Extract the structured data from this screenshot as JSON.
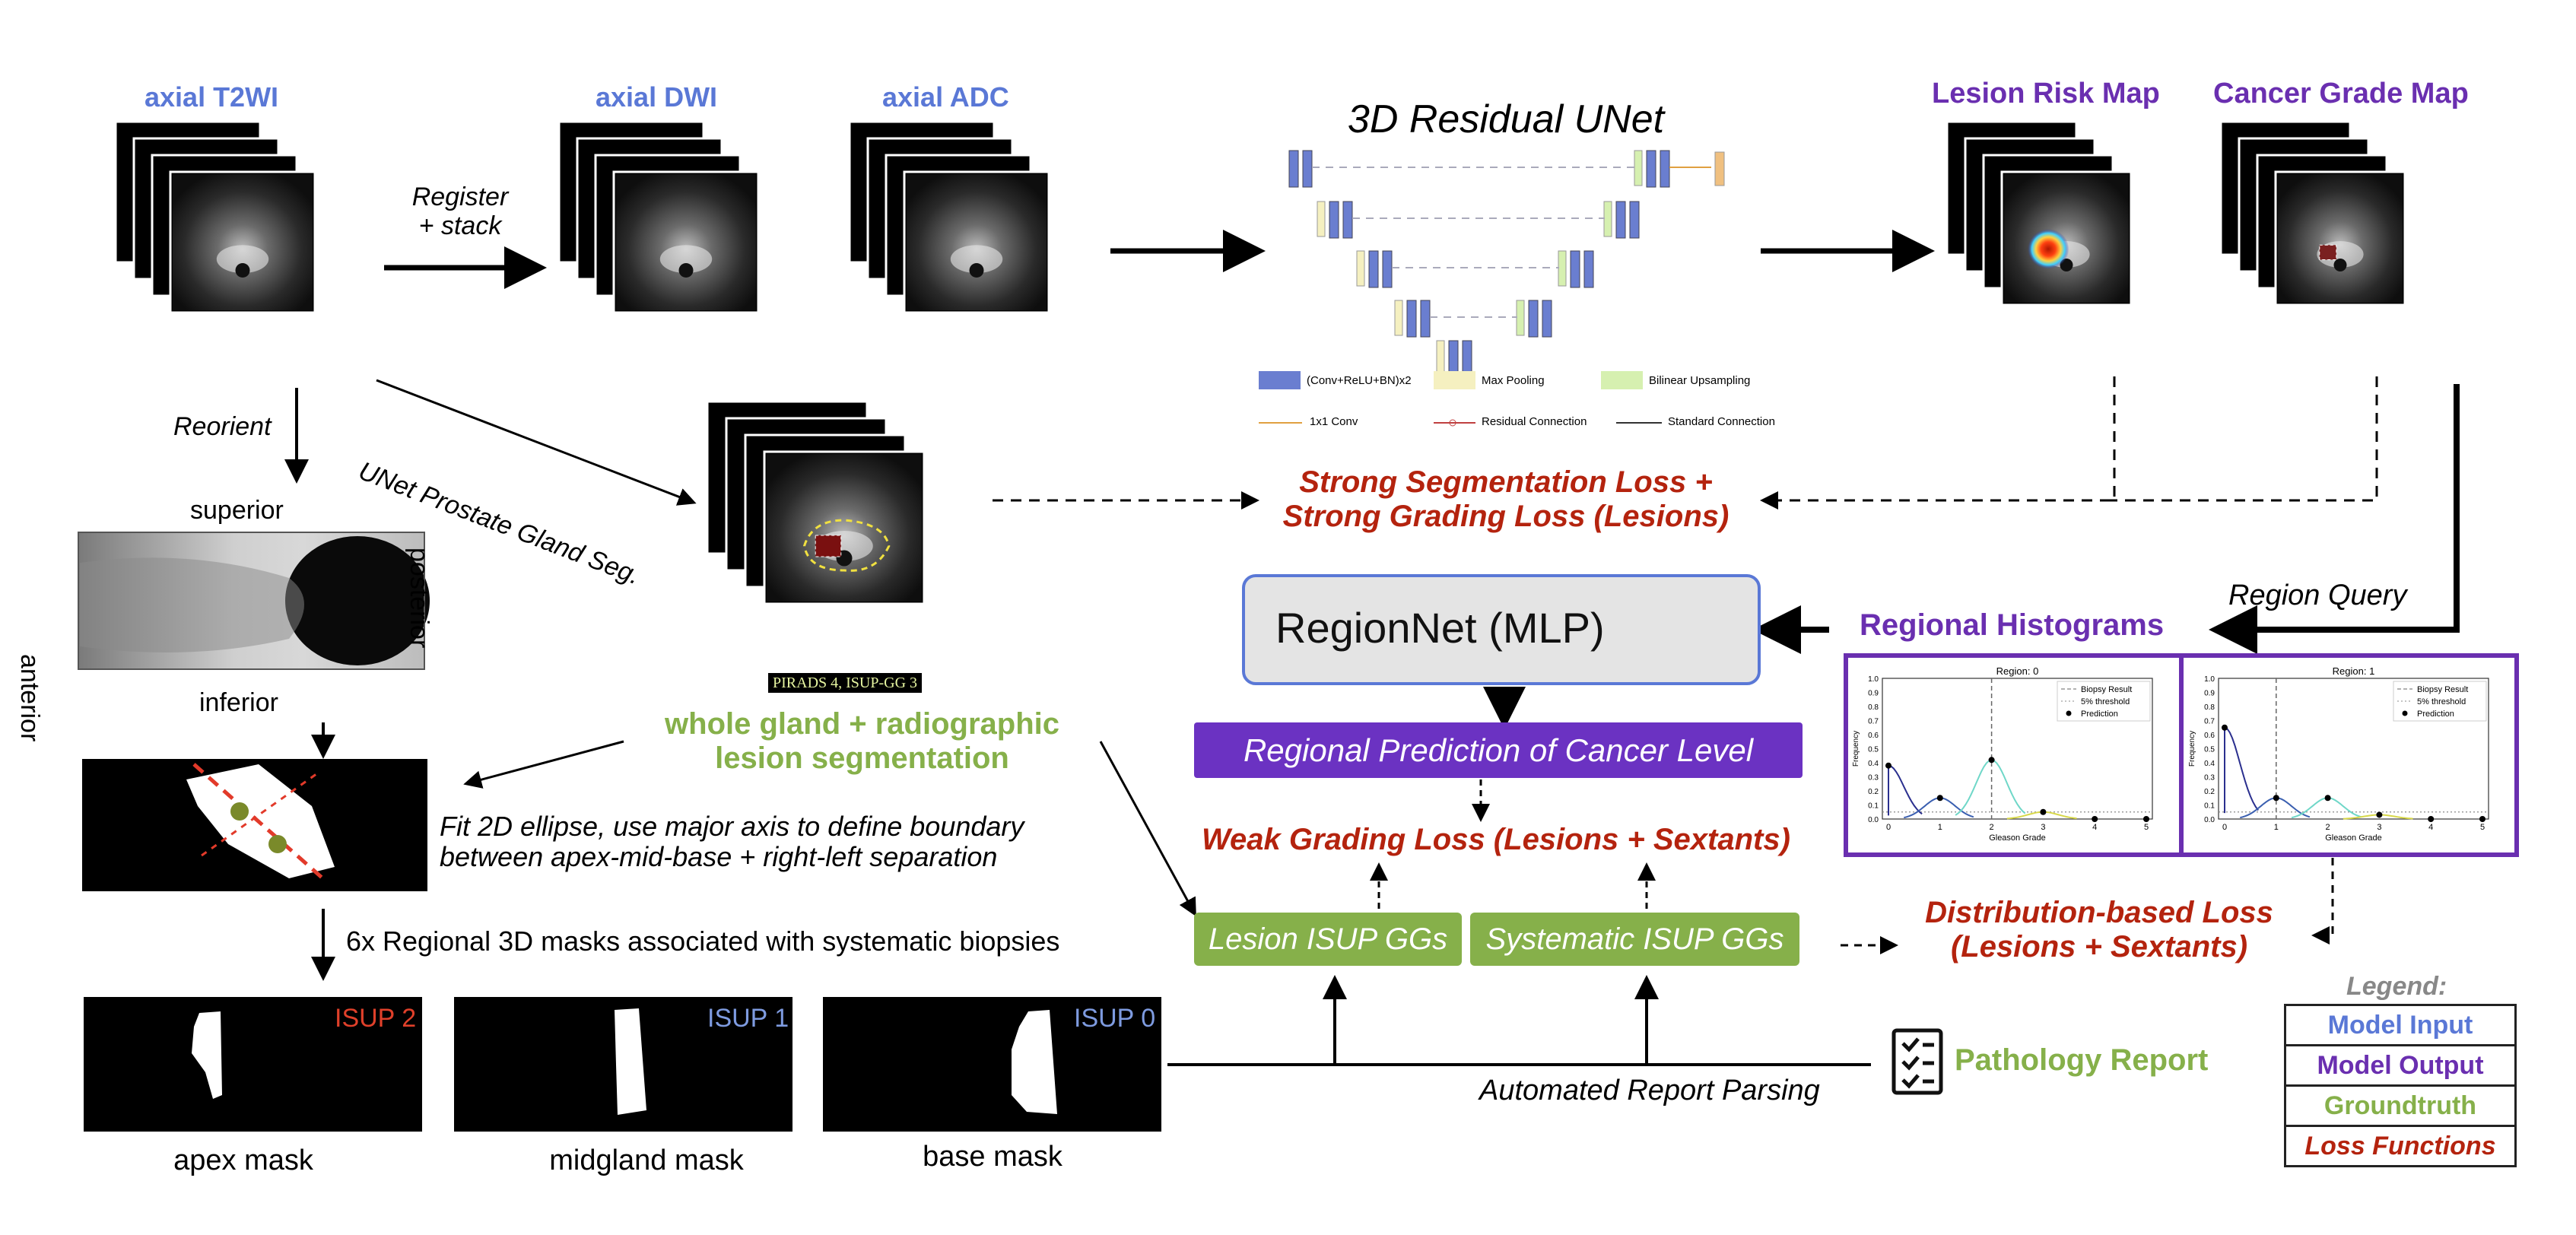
{
  "colors": {
    "model_input": "#5a78d6",
    "model_output": "#6a2fb0",
    "groundtruth": "#86b04a",
    "loss": "#b4230e"
  },
  "inputs": {
    "t2wi": "axial T2WI",
    "dwi": "axial DWI",
    "adc": "axial ADC"
  },
  "register_stack": [
    "Register",
    "+ stack"
  ],
  "reorient": "Reorient",
  "unet_gland_seg": "UNet Prostate Gland Seg.",
  "orientation": {
    "superior": "superior",
    "inferior": "inferior",
    "anterior": "anterior",
    "posterior": "posterior"
  },
  "seg_overlay_label": "PIRADS 4, ISUP-GG 3",
  "whole_gland_seg": [
    "whole gland + radiographic",
    "lesion segmentation"
  ],
  "ellipse_text": [
    "Fit 2D ellipse, use major axis to define boundary",
    "between apex-mid-base + right-left separation"
  ],
  "regional_masks_text": "6x Regional 3D masks associated with systematic biopsies",
  "masks": [
    {
      "isup": "ISUP 2",
      "label": "apex mask",
      "isup_color": "#e0402a"
    },
    {
      "isup": "ISUP 1",
      "label": "midgland mask",
      "isup_color": "#7e9be0"
    },
    {
      "isup": "ISUP 0",
      "label": "base mask",
      "isup_color": "#7e9be0"
    }
  ],
  "unet": {
    "title": "3D Residual UNet",
    "legend": [
      "(Conv+ReLU+BN)x2",
      "Max Pooling",
      "Bilinear Upsampling",
      "1x1 Conv",
      "Residual Connection",
      "Standard Connection"
    ]
  },
  "outputs": {
    "lesion_risk_map": "Lesion Risk Map",
    "cancer_grade_map": "Cancer Grade Map"
  },
  "strong_loss": [
    "Strong Segmentation Loss +",
    "Strong Grading Loss (Lesions)"
  ],
  "regionnet": "RegionNet (MLP)",
  "region_query": "Region Query",
  "regional_histograms": "Regional Histograms",
  "regional_prediction": "Regional Prediction of Cancer Level",
  "weak_loss": "Weak Grading Loss (Lesions + Sextants)",
  "lesion_isup": "Lesion ISUP GGs",
  "systematic_isup": "Systematic ISUP GGs",
  "distribution_loss": [
    "Distribution-based Loss",
    "(Lesions + Sextants)"
  ],
  "pathology_report": "Pathology Report",
  "automated_parsing": "Automated Report Parsing",
  "legend": {
    "title": "Legend:",
    "items": [
      "Model Input",
      "Model Output",
      "Groundtruth",
      "Loss Functions"
    ]
  },
  "histograms": {
    "charts": [
      {
        "title": "Region: 0",
        "xlabel": "Gleason Grade",
        "ylabel": "Frequency",
        "legend": [
          "Biopsy Result",
          "5% threshold",
          "Prediction"
        ],
        "biopsy_result": 2,
        "threshold": 0.05,
        "predictions": [
          {
            "x": 0,
            "y": 0.38
          },
          {
            "x": 1,
            "y": 0.15
          },
          {
            "x": 2,
            "y": 0.42
          },
          {
            "x": 3,
            "y": 0.05
          },
          {
            "x": 4,
            "y": 0.0
          },
          {
            "x": 5,
            "y": 0.0
          }
        ]
      },
      {
        "title": "Region: 1",
        "xlabel": "Gleason Grade",
        "ylabel": "Frequency",
        "legend": [
          "Biopsy Result",
          "5% threshold",
          "Prediction"
        ],
        "biopsy_result": 1,
        "threshold": 0.05,
        "predictions": [
          {
            "x": 0,
            "y": 0.65
          },
          {
            "x": 1,
            "y": 0.15
          },
          {
            "x": 2,
            "y": 0.15
          },
          {
            "x": 3,
            "y": 0.03
          },
          {
            "x": 4,
            "y": 0.0
          },
          {
            "x": 5,
            "y": 0.0
          }
        ]
      }
    ],
    "yticks": [
      "0.0",
      "0.1",
      "0.2",
      "0.3",
      "0.4",
      "0.5",
      "0.6",
      "0.7",
      "0.8",
      "0.9",
      "1.0"
    ],
    "xticks": [
      "0",
      "1",
      "2",
      "3",
      "4",
      "5"
    ],
    "series_colors": [
      "#2a2f8e",
      "#3a5fb0",
      "#6fd7c8",
      "#d8d84a",
      "#e0b040"
    ]
  }
}
